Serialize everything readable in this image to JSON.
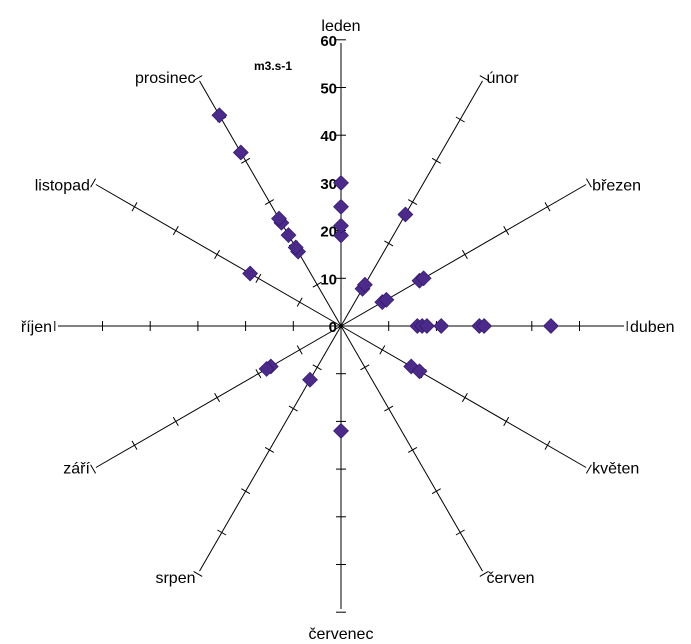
{
  "chart_data": {
    "type": "scatter",
    "subtype": "radar",
    "unit": "m3.s-1",
    "rlim": [
      0,
      60
    ],
    "scale_ticks": [
      "0",
      "10",
      "20",
      "30",
      "40",
      "50",
      "60"
    ],
    "point_color": "#4b2a8a",
    "axes": [
      "leden",
      "únor",
      "březen",
      "duben",
      "květen",
      "červen",
      "červenec",
      "srpen",
      "září",
      "říjen",
      "listopad",
      "prosinec"
    ],
    "series": [
      {
        "points": [
          {
            "month": "leden",
            "values": [
              19,
              21,
              25,
              30
            ]
          },
          {
            "month": "únor",
            "values": [
              9,
              10,
              27
            ]
          },
          {
            "month": "březen",
            "values": [
              10,
              11,
              19,
              20
            ]
          },
          {
            "month": "duben",
            "values": [
              16,
              17,
              18,
              21,
              29,
              30,
              44
            ]
          },
          {
            "month": "květen",
            "values": [
              17,
              19
            ]
          },
          {
            "month": "červenec",
            "values": [
              22
            ]
          },
          {
            "month": "srpen",
            "values": [
              13
            ]
          },
          {
            "month": "září",
            "values": [
              17,
              18
            ]
          },
          {
            "month": "listopad",
            "values": [
              22
            ]
          },
          {
            "month": "prosinec",
            "values": [
              18,
              19,
              22,
              25,
              26,
              42,
              51
            ]
          }
        ]
      }
    ]
  }
}
